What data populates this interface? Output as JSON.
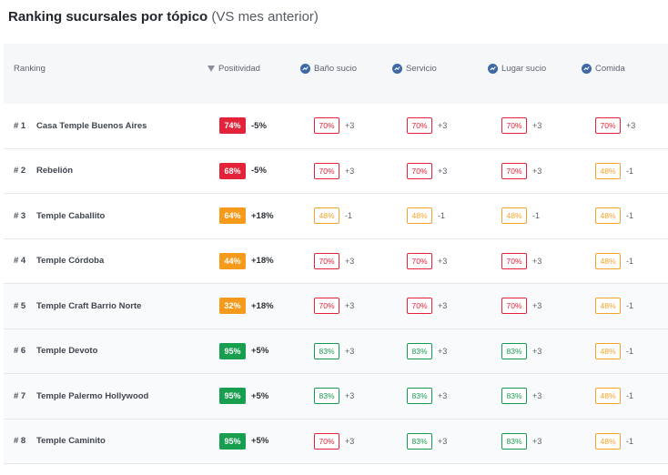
{
  "title": {
    "main": "Ranking sucursales por tópico",
    "sub": "(VS mes anterior)"
  },
  "header": {
    "ranking": "Ranking",
    "positivity": "Positividad",
    "topics": [
      "Baño sucio",
      "Servicio",
      "Lugar sucio",
      "Comida"
    ]
  },
  "rows": [
    {
      "rank": "# 1",
      "name": "Casa Temple Buenos Aires",
      "pos": "74%",
      "pos_color": "red",
      "delta": "-5%",
      "topics": [
        {
          "value": "70%",
          "color": "red",
          "delta": "+3"
        },
        {
          "value": "70%",
          "color": "red",
          "delta": "+3"
        },
        {
          "value": "70%",
          "color": "red",
          "delta": "+3"
        },
        {
          "value": "70%",
          "color": "red",
          "delta": "+3"
        }
      ]
    },
    {
      "rank": "# 2",
      "name": "Rebelión",
      "pos": "68%",
      "pos_color": "red",
      "delta": "-5%",
      "topics": [
        {
          "value": "70%",
          "color": "red",
          "delta": "+3"
        },
        {
          "value": "70%",
          "color": "red",
          "delta": "+3"
        },
        {
          "value": "70%",
          "color": "red",
          "delta": "+3"
        },
        {
          "value": "48%",
          "color": "orange",
          "delta": "-1"
        }
      ]
    },
    {
      "rank": "# 3",
      "name": "Temple Caballito",
      "pos": "64%",
      "pos_color": "orange",
      "delta": "+18%",
      "topics": [
        {
          "value": "48%",
          "color": "orange",
          "delta": "-1"
        },
        {
          "value": "48%",
          "color": "orange",
          "delta": "-1"
        },
        {
          "value": "48%",
          "color": "orange",
          "delta": "-1"
        },
        {
          "value": "48%",
          "color": "orange",
          "delta": "-1"
        }
      ]
    },
    {
      "rank": "# 4",
      "name": "Temple Córdoba",
      "pos": "44%",
      "pos_color": "orange",
      "delta": "+18%",
      "topics": [
        {
          "value": "70%",
          "color": "red",
          "delta": "+3"
        },
        {
          "value": "70%",
          "color": "red",
          "delta": "+3"
        },
        {
          "value": "70%",
          "color": "red",
          "delta": "+3"
        },
        {
          "value": "48%",
          "color": "orange",
          "delta": "-1"
        }
      ]
    },
    {
      "rank": "# 5",
      "name": "Temple Craft Barrio Norte",
      "pos": "32%",
      "pos_color": "orange",
      "delta": "+18%",
      "topics": [
        {
          "value": "70%",
          "color": "red",
          "delta": "+3"
        },
        {
          "value": "70%",
          "color": "red",
          "delta": "+3"
        },
        {
          "value": "70%",
          "color": "red",
          "delta": "+3"
        },
        {
          "value": "48%",
          "color": "orange",
          "delta": "-1"
        }
      ]
    },
    {
      "rank": "# 6",
      "name": "Temple Devoto",
      "pos": "95%",
      "pos_color": "green",
      "delta": "+5%",
      "topics": [
        {
          "value": "83%",
          "color": "green",
          "delta": "+3"
        },
        {
          "value": "83%",
          "color": "green",
          "delta": "+3"
        },
        {
          "value": "83%",
          "color": "green",
          "delta": "+3"
        },
        {
          "value": "48%",
          "color": "orange",
          "delta": "-1"
        }
      ]
    },
    {
      "rank": "# 7",
      "name": "Temple Palermo Hollywood",
      "pos": "95%",
      "pos_color": "green",
      "delta": "+5%",
      "topics": [
        {
          "value": "83%",
          "color": "green",
          "delta": "+3"
        },
        {
          "value": "83%",
          "color": "green",
          "delta": "+3"
        },
        {
          "value": "83%",
          "color": "green",
          "delta": "+3"
        },
        {
          "value": "48%",
          "color": "orange",
          "delta": "-1"
        }
      ]
    },
    {
      "rank": "# 8",
      "name": "Temple Caminito",
      "pos": "95%",
      "pos_color": "green",
      "delta": "+5%",
      "topics": [
        {
          "value": "70%",
          "color": "red",
          "delta": "+3"
        },
        {
          "value": "83%",
          "color": "green",
          "delta": "+3"
        },
        {
          "value": "83%",
          "color": "green",
          "delta": "+3"
        },
        {
          "value": "48%",
          "color": "orange",
          "delta": "-1"
        }
      ]
    }
  ],
  "colors": {
    "red": "#e2233a",
    "orange": "#f59a1b",
    "green": "#179e4e",
    "topic_icon": "#3d6aa6"
  },
  "icons": {
    "sort": "sort-desc-icon",
    "topic": "trend-up-icon"
  }
}
